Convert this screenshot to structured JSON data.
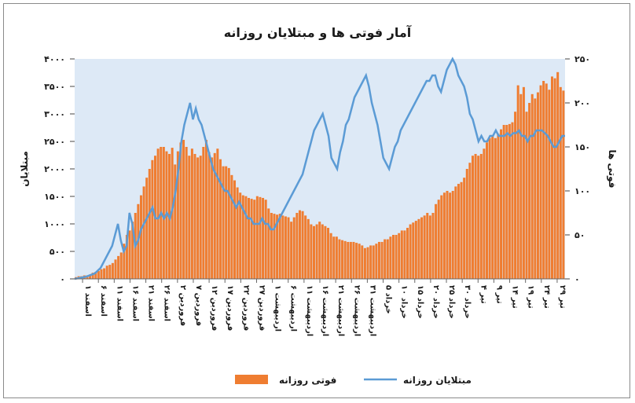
{
  "chart_data": {
    "type": "bar",
    "title": "آمار فوتی ها و مبتلایان روزانه",
    "ylabel_left": "مبتلایان",
    "ylabel_right": "فوتی ها",
    "y_left_lim": [
      0,
      4000
    ],
    "y_right_lim": [
      0,
      250
    ],
    "y_left_ticks": [
      "۰",
      "۵۰۰",
      "۱۰۰۰",
      "۱۵۰۰",
      "۲۰۰۰",
      "۲۵۰۰",
      "۳۰۰۰",
      "۳۵۰۰",
      "۴۰۰۰"
    ],
    "y_right_ticks": [
      "۰",
      "۵۰",
      "۱۰۰",
      "۱۵۰",
      "۲۰۰",
      "۲۵۰"
    ],
    "x_tick_labels": [
      "۱ اسفند",
      "۶ اسفند",
      "۱۱ اسفند",
      "۱۶ اسفند",
      "۲۱ اسفند",
      "۲۶ اسفند",
      "۲ فروردین",
      "۷ فروردین",
      "۱۲ فروردین",
      "۱۷ فروردین",
      "۲۲ فروردین",
      "۲۷ فروردین",
      "۱ اردیبهشت",
      "۶ اردیبهشت",
      "۱۱ اردیبهشت",
      "۱۶ اردیبهشت",
      "۲۱ اردیبهشت",
      "۲۶ اردیبهشت",
      "۳۱ اردیبهشت",
      "۵ خرداد",
      "۱۰ خرداد",
      "۱۵ خرداد",
      "۲۰ خرداد",
      "۲۵ خرداد",
      "۳۰ خرداد",
      "۴ تیر",
      "۹ تیر",
      "۱۴ تیر",
      "۱۹ تیر",
      "۲۴ تیر",
      "۲۹ تیر"
    ],
    "grid": false,
    "plot_background": "#dde9f6",
    "series": [
      {
        "name": "فوتی روزانه",
        "type": "bar",
        "axis": "right",
        "color": "#ef7d31",
        "values": [
          2,
          3,
          3,
          4,
          4,
          5,
          7,
          8,
          9,
          11,
          12,
          15,
          16,
          18,
          22,
          26,
          30,
          40,
          50,
          55,
          65,
          75,
          85,
          95,
          105,
          115,
          125,
          135,
          140,
          148,
          150,
          150,
          145,
          142,
          149,
          130,
          145,
          155,
          158,
          150,
          140,
          148,
          142,
          138,
          140,
          150,
          158,
          144,
          138,
          143,
          148,
          136,
          128,
          128,
          126,
          118,
          112,
          104,
          98,
          95,
          94,
          92,
          91,
          90,
          94,
          93,
          92,
          90,
          80,
          75,
          74,
          73,
          74,
          72,
          71,
          70,
          65,
          70,
          75,
          78,
          77,
          72,
          68,
          62,
          60,
          62,
          65,
          62,
          60,
          58,
          52,
          48,
          48,
          45,
          44,
          43,
          42,
          42,
          42,
          41,
          40,
          38,
          35,
          36,
          38,
          38,
          40,
          42,
          42,
          45,
          45,
          48,
          50,
          50,
          52,
          55,
          55,
          58,
          62,
          64,
          66,
          68,
          70,
          72,
          75,
          72,
          75,
          85,
          90,
          95,
          98,
          100,
          98,
          100,
          105,
          108,
          110,
          115,
          125,
          132,
          140,
          142,
          140,
          142,
          148,
          155,
          160,
          162,
          160,
          165,
          170,
          175,
          175,
          176,
          178,
          190,
          220,
          210,
          218,
          190,
          200,
          210,
          205,
          212,
          220,
          225,
          222,
          215,
          230,
          228,
          235,
          218,
          214
        ]
      },
      {
        "name": "مبتلایان روزانه",
        "type": "line",
        "axis": "left",
        "color": "#5b9bd5",
        "values": [
          0,
          10,
          20,
          30,
          40,
          60,
          80,
          100,
          150,
          200,
          300,
          400,
          500,
          600,
          800,
          1000,
          700,
          500,
          600,
          1200,
          1000,
          600,
          700,
          900,
          1000,
          1100,
          1200,
          1300,
          1100,
          1100,
          1200,
          1100,
          1200,
          1100,
          1300,
          1600,
          2000,
          2500,
          2800,
          3000,
          3200,
          2900,
          3100,
          2900,
          2800,
          2600,
          2400,
          2200,
          2000,
          1900,
          1800,
          1700,
          1600,
          1600,
          1500,
          1400,
          1300,
          1400,
          1300,
          1200,
          1100,
          1100,
          1000,
          1000,
          1000,
          1100,
          1000,
          1000,
          900,
          900,
          1000,
          1100,
          1200,
          1300,
          1400,
          1500,
          1600,
          1700,
          1800,
          1900,
          2100,
          2300,
          2500,
          2700,
          2800,
          2900,
          3000,
          2800,
          2600,
          2200,
          2100,
          2000,
          2300,
          2500,
          2800,
          2900,
          3100,
          3300,
          3400,
          3500,
          3600,
          3700,
          3500,
          3200,
          3000,
          2800,
          2500,
          2200,
          2100,
          2000,
          2200,
          2400,
          2500,
          2700,
          2800,
          2900,
          3000,
          3100,
          3200,
          3300,
          3400,
          3500,
          3600,
          3600,
          3700,
          3700,
          3500,
          3400,
          3600,
          3800,
          3900,
          4000,
          3900,
          3700,
          3600,
          3500,
          3300,
          3000,
          2900,
          2700,
          2500,
          2600,
          2500,
          2500,
          2600,
          2600,
          2700,
          2600,
          2600,
          2600,
          2650,
          2600,
          2650,
          2650,
          2700,
          2600,
          2600,
          2500,
          2600,
          2600,
          2700,
          2700,
          2700,
          2650,
          2600,
          2500,
          2400,
          2400,
          2500,
          2600,
          2600
        ]
      }
    ]
  }
}
